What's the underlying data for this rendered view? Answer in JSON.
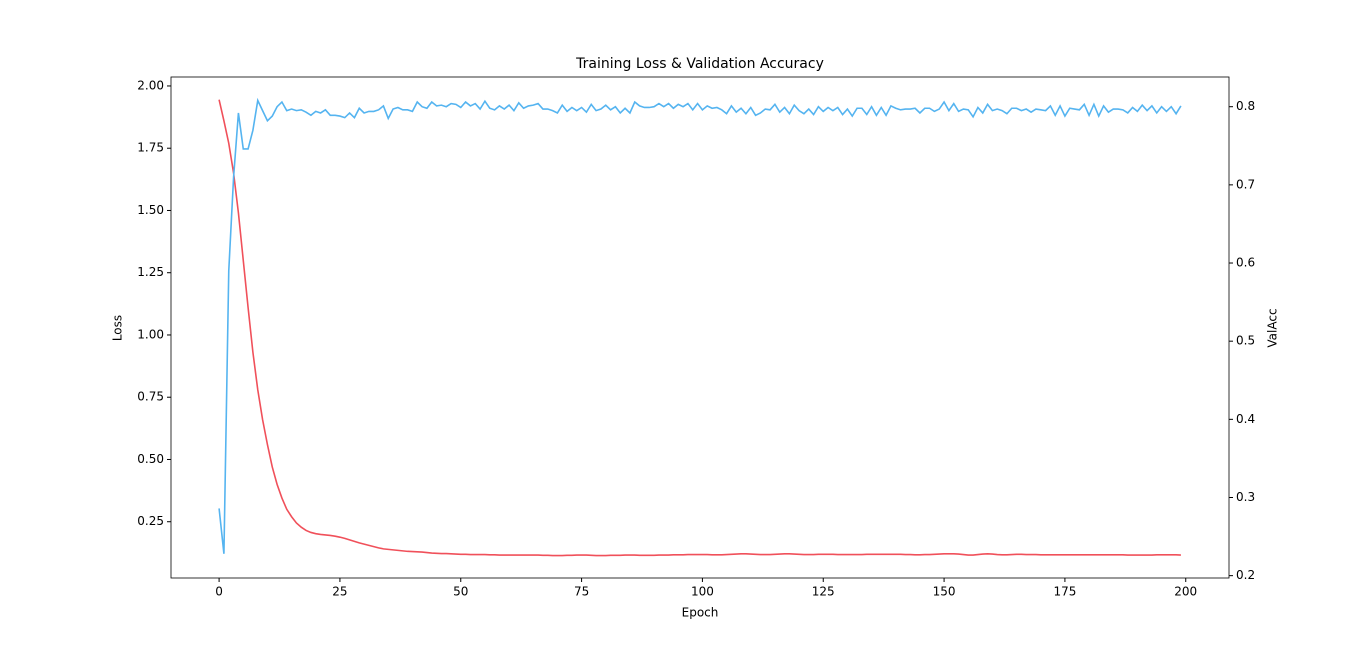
{
  "chart_data": {
    "type": "line",
    "title": "Training Loss & Validation Accuracy",
    "x_label": "Epoch",
    "y_label": "Loss",
    "y2_label": "ValAcc",
    "x": [
      0,
      1,
      2,
      3,
      4,
      5,
      6,
      7,
      8,
      9,
      10,
      11,
      12,
      13,
      14,
      15,
      16,
      17,
      18,
      19,
      20,
      21,
      22,
      23,
      24,
      25,
      26,
      27,
      28,
      29,
      30,
      31,
      32,
      33,
      34,
      35,
      36,
      37,
      38,
      39,
      40,
      41,
      42,
      43,
      44,
      45,
      46,
      47,
      48,
      49,
      50,
      51,
      52,
      53,
      54,
      55,
      56,
      57,
      58,
      59,
      60,
      61,
      62,
      63,
      64,
      65,
      66,
      67,
      68,
      69,
      70,
      71,
      72,
      73,
      74,
      75,
      76,
      77,
      78,
      79,
      80,
      81,
      82,
      83,
      84,
      85,
      86,
      87,
      88,
      89,
      90,
      91,
      92,
      93,
      94,
      95,
      96,
      97,
      98,
      99,
      100,
      101,
      102,
      103,
      104,
      105,
      106,
      107,
      108,
      109,
      110,
      111,
      112,
      113,
      114,
      115,
      116,
      117,
      118,
      119,
      120,
      121,
      122,
      123,
      124,
      125,
      126,
      127,
      128,
      129,
      130,
      131,
      132,
      133,
      134,
      135,
      136,
      137,
      138,
      139,
      140,
      141,
      142,
      143,
      144,
      145,
      146,
      147,
      148,
      149,
      150,
      151,
      152,
      153,
      154,
      155,
      156,
      157,
      158,
      159,
      160,
      161,
      162,
      163,
      164,
      165,
      166,
      167,
      168,
      169,
      170,
      171,
      172,
      173,
      174,
      175,
      176,
      177,
      178,
      179,
      180,
      181,
      182,
      183,
      184,
      185,
      186,
      187,
      188,
      189,
      190,
      191,
      192,
      193,
      194,
      195,
      196,
      197,
      198,
      199
    ],
    "series": [
      {
        "color": "#f0505a",
        "axis": "y",
        "values": [
          1.945,
          1.86,
          1.77,
          1.65,
          1.49,
          1.3,
          1.11,
          0.93,
          0.78,
          0.66,
          0.56,
          0.47,
          0.4,
          0.345,
          0.3,
          0.27,
          0.245,
          0.228,
          0.215,
          0.207,
          0.202,
          0.199,
          0.197,
          0.195,
          0.192,
          0.188,
          0.183,
          0.177,
          0.171,
          0.165,
          0.16,
          0.155,
          0.15,
          0.145,
          0.141,
          0.139,
          0.137,
          0.135,
          0.133,
          0.131,
          0.13,
          0.129,
          0.128,
          0.126,
          0.124,
          0.123,
          0.122,
          0.122,
          0.121,
          0.12,
          0.119,
          0.119,
          0.118,
          0.118,
          0.118,
          0.118,
          0.117,
          0.117,
          0.116,
          0.116,
          0.116,
          0.116,
          0.116,
          0.116,
          0.116,
          0.116,
          0.116,
          0.115,
          0.115,
          0.114,
          0.114,
          0.114,
          0.115,
          0.115,
          0.116,
          0.116,
          0.116,
          0.115,
          0.114,
          0.114,
          0.114,
          0.115,
          0.115,
          0.115,
          0.116,
          0.116,
          0.116,
          0.115,
          0.115,
          0.115,
          0.115,
          0.116,
          0.116,
          0.116,
          0.117,
          0.117,
          0.117,
          0.118,
          0.118,
          0.118,
          0.118,
          0.118,
          0.117,
          0.117,
          0.117,
          0.118,
          0.119,
          0.12,
          0.121,
          0.121,
          0.12,
          0.119,
          0.118,
          0.118,
          0.118,
          0.119,
          0.12,
          0.121,
          0.121,
          0.12,
          0.119,
          0.118,
          0.118,
          0.118,
          0.119,
          0.119,
          0.119,
          0.119,
          0.118,
          0.118,
          0.118,
          0.118,
          0.118,
          0.118,
          0.119,
          0.119,
          0.119,
          0.119,
          0.119,
          0.119,
          0.119,
          0.119,
          0.118,
          0.118,
          0.117,
          0.117,
          0.118,
          0.118,
          0.119,
          0.12,
          0.121,
          0.121,
          0.121,
          0.12,
          0.118,
          0.116,
          0.116,
          0.118,
          0.12,
          0.121,
          0.12,
          0.118,
          0.117,
          0.117,
          0.118,
          0.119,
          0.119,
          0.118,
          0.118,
          0.118,
          0.117,
          0.117,
          0.117,
          0.117,
          0.117,
          0.117,
          0.117,
          0.117,
          0.117,
          0.117,
          0.117,
          0.117,
          0.117,
          0.117,
          0.117,
          0.117,
          0.117,
          0.117,
          0.116,
          0.116,
          0.116,
          0.116,
          0.116,
          0.116,
          0.117,
          0.117,
          0.117,
          0.117,
          0.117,
          0.116
        ]
      },
      {
        "color": "#55b4f0",
        "axis": "y2",
        "values": [
          0.286,
          0.228,
          0.59,
          0.71,
          0.792,
          0.746,
          0.746,
          0.77,
          0.808,
          0.795,
          0.782,
          0.788,
          0.8,
          0.806,
          0.795,
          0.797,
          0.795,
          0.796,
          0.793,
          0.789,
          0.794,
          0.792,
          0.796,
          0.789,
          0.789,
          0.788,
          0.786,
          0.792,
          0.786,
          0.798,
          0.792,
          0.794,
          0.794,
          0.796,
          0.801,
          0.785,
          0.797,
          0.799,
          0.796,
          0.796,
          0.794,
          0.806,
          0.8,
          0.798,
          0.806,
          0.801,
          0.802,
          0.8,
          0.804,
          0.803,
          0.799,
          0.806,
          0.801,
          0.804,
          0.797,
          0.807,
          0.798,
          0.796,
          0.801,
          0.797,
          0.802,
          0.795,
          0.805,
          0.798,
          0.801,
          0.802,
          0.804,
          0.797,
          0.797,
          0.795,
          0.792,
          0.802,
          0.794,
          0.799,
          0.795,
          0.799,
          0.793,
          0.803,
          0.795,
          0.797,
          0.802,
          0.796,
          0.8,
          0.792,
          0.798,
          0.792,
          0.806,
          0.801,
          0.799,
          0.799,
          0.8,
          0.804,
          0.8,
          0.804,
          0.798,
          0.803,
          0.8,
          0.804,
          0.796,
          0.804,
          0.796,
          0.801,
          0.798,
          0.799,
          0.796,
          0.791,
          0.801,
          0.793,
          0.798,
          0.791,
          0.799,
          0.789,
          0.792,
          0.797,
          0.796,
          0.803,
          0.793,
          0.799,
          0.791,
          0.802,
          0.795,
          0.791,
          0.797,
          0.79,
          0.8,
          0.794,
          0.799,
          0.795,
          0.799,
          0.79,
          0.797,
          0.788,
          0.798,
          0.798,
          0.79,
          0.8,
          0.789,
          0.799,
          0.789,
          0.801,
          0.798,
          0.796,
          0.797,
          0.797,
          0.798,
          0.792,
          0.798,
          0.798,
          0.794,
          0.797,
          0.806,
          0.795,
          0.804,
          0.794,
          0.797,
          0.796,
          0.787,
          0.799,
          0.792,
          0.803,
          0.795,
          0.797,
          0.795,
          0.791,
          0.798,
          0.798,
          0.795,
          0.797,
          0.793,
          0.797,
          0.796,
          0.795,
          0.801,
          0.789,
          0.801,
          0.788,
          0.798,
          0.797,
          0.796,
          0.803,
          0.789,
          0.803,
          0.788,
          0.801,
          0.793,
          0.797,
          0.797,
          0.796,
          0.792,
          0.799,
          0.794,
          0.802,
          0.795,
          0.801,
          0.792,
          0.8,
          0.794,
          0.8,
          0.791,
          0.801
        ]
      }
    ],
    "xlim": [
      -9.95,
      208.95
    ],
    "xticks": [
      0,
      25,
      50,
      75,
      100,
      125,
      150,
      175,
      200
    ],
    "ylim": [
      0.024,
      2.036
    ],
    "yticks": [
      0.25,
      {
        "value": 0.5,
        "label": "0.50"
      },
      0.75,
      {
        "value": 1.0,
        "label": "1.00"
      },
      1.25,
      {
        "value": 1.5,
        "label": "1.50"
      },
      1.75,
      {
        "value": 2.0,
        "label": "2.00"
      }
    ],
    "y2lim": [
      0.197,
      0.838
    ],
    "y2ticks": [
      0.2,
      0.3,
      0.4,
      0.5,
      0.6,
      0.7,
      0.8
    ]
  }
}
